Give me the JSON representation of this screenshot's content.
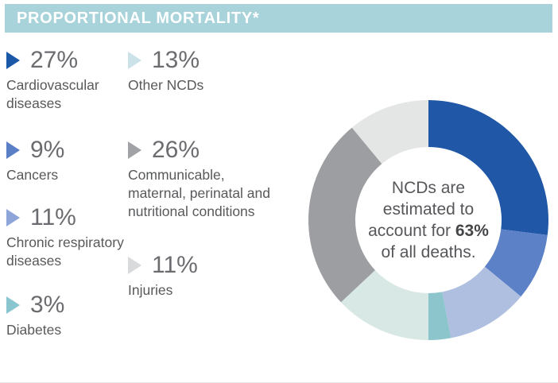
{
  "header": {
    "title": "PROPORTIONAL MORTALITY*",
    "bar_color": "#a8d3da",
    "text_color": "#ffffff"
  },
  "legend": {
    "columns": [
      {
        "items": [
          {
            "value": "27%",
            "label": "Cardiovascular diseases",
            "marker_color": "#1b59a8"
          },
          {
            "value": "9%",
            "label": "Cancers",
            "marker_color": "#5b7fc6"
          },
          {
            "value": "11%",
            "label": "Chronic respiratory diseases",
            "marker_color": "#8da5d8"
          },
          {
            "value": "3%",
            "label": "Diabetes",
            "marker_color": "#8ac6cf"
          }
        ]
      },
      {
        "items": [
          {
            "value": "13%",
            "label": "Other NCDs",
            "marker_color": "#cbe2e9"
          },
          {
            "value": "26%",
            "label": "Communicable, maternal, perinatal and nutritional conditions",
            "marker_color": "#a0a2a5"
          },
          {
            "value": "11%",
            "label": "Injuries",
            "marker_color": "#d9dadc"
          }
        ]
      }
    ]
  },
  "donut_center": {
    "line1": "NCDs are",
    "line2": "estimated to",
    "line3_prefix": "account for ",
    "line3_bold": "63%",
    "line4": "of all deaths."
  },
  "chart_data": {
    "type": "pie",
    "subtype": "donut",
    "title": "PROPORTIONAL MORTALITY*",
    "categories": [
      "Cardiovascular diseases",
      "Cancers",
      "Chronic respiratory diseases",
      "Diabetes",
      "Other NCDs",
      "Communicable, maternal, perinatal and nutritional conditions",
      "Injuries"
    ],
    "values": [
      27,
      9,
      11,
      3,
      13,
      26,
      11
    ],
    "colors": [
      "#2057a6",
      "#5c81c6",
      "#aebfe0",
      "#8cc5cc",
      "#d8e8e4",
      "#9c9ea1",
      "#e4e5e5"
    ],
    "start_angle_deg": 0,
    "direction": "clockwise",
    "inner_radius_ratio": 0.61,
    "center_annotation": "NCDs are estimated to account for 63% of all deaths.",
    "legend_position": "left"
  }
}
